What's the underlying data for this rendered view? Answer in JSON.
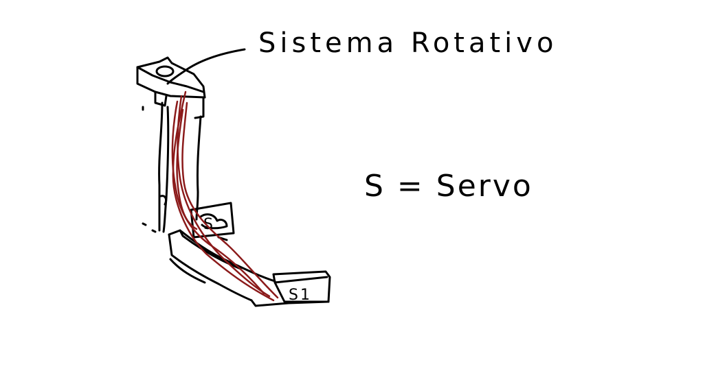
{
  "labels": {
    "title": "Sistema Rotativo",
    "legend": "S = Servo",
    "servo_base": "S1",
    "servo_top": "S"
  },
  "colors": {
    "ink": "#000000",
    "wire": "#8b1a1a",
    "background": "#ffffff"
  }
}
